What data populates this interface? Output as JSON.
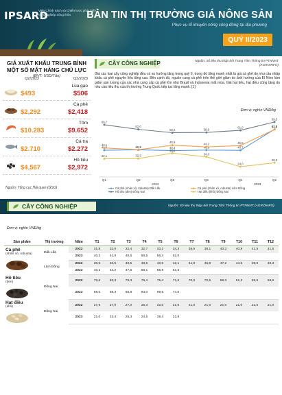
{
  "header": {
    "logo_text": "IPSARD",
    "tagline": "Viện Chính sách và Chiến lược phát triển nông nghiệp nông thôn",
    "title": "BẢN TIN THỊ TRƯỜNG GIÁ NÔNG SẢN",
    "subtitle": "Phục vụ tổ khuyến nông cộng đồng tại địa phương",
    "quarter": "QUÝ II/2023"
  },
  "export_panel": {
    "title": "GIÁ XUẤT KHẨU TRUNG BÌNH MỘT SỐ MẶT HÀNG CHỦ LỰC",
    "unit": "(ĐVT: USD/Tấn)",
    "col1": "Q2/2022",
    "col2": "Q2/2023",
    "items": [
      {
        "name": "Lúa gạo",
        "v1": "$493",
        "v2": "$506",
        "icon": "rice-icon"
      },
      {
        "name": "Cà phê",
        "v1": "$2,292",
        "v2": "$2,418",
        "icon": "coffee-icon"
      },
      {
        "name": "Tôm",
        "v1": "$10.283",
        "v2": "$9.652",
        "icon": "shrimp-icon"
      },
      {
        "name": "Cá tra",
        "v1": "$2.710",
        "v2": "$2.272",
        "icon": "fish-icon"
      },
      {
        "name": "Hồ tiêu",
        "v1": "$4,567",
        "v2": "$2,972",
        "icon": "pepper-icon"
      }
    ],
    "source": "Nguồn: Tổng cục Hải quan (GSO)"
  },
  "section1": {
    "label": "CÂY CÔNG NGHIỆP",
    "source": "Nguồn: Số liệu thu thập bởi Trung Tâm Thông tin PTNNNT (AGROINFO)",
    "paragraph": "Giá các loại cây công nghiệp đều có xu hướng tăng trong quý II, trong đó tăng mạnh nhất là giá cà phê do nhu cầu nhập khẩu cà phê nguyên liệu tăng cao. Bên cạnh đó, nguồn cung cà phê trên thế giới giảm do ảnh hưởng của El Nino làm giảm sản lượng của các nhà cung cấp cà phê lớn như Brazil và Indonesia mất mùa. Giá hạt tiêu, hạt điều cũng tăng do nhu cầu tiêu thụ của thị trường Trung Quốc tiếp tục tăng mạnh. [1]",
    "chart_unit": "Đơn vị: nghìn VNĐ/kg"
  },
  "chart_data": {
    "type": "line",
    "x": [
      "Q1",
      "Q2",
      "Q3",
      "Q4",
      "Q1",
      "Q2"
    ],
    "year_labels": [
      "2022",
      "2023"
    ],
    "ylim": [
      15,
      75
    ],
    "series": [
      {
        "name": "Cà phê (nhân xô, robusta) Đắk Lắk",
        "color": "#5b9bd5",
        "values": [
          40.8,
          41.2,
          40.4,
          40.9,
          40.7,
          62.0
        ]
      },
      {
        "name": "Cà phê (nhân xô, robusta) Lâm Đồng",
        "color": "#f4a24a",
        "values": [
          43.1,
          41.3,
          45.9,
          44.2,
          45.5,
          61.8
        ]
      },
      {
        "name": "Hồ tiêu (đen) Đồng Nai",
        "color": "#6c7a89",
        "values": [
          66.7,
          62.0,
          58.6,
          58.9,
          61.0,
          69.5
        ]
      },
      {
        "name": "Hạt điều (khô) Đồng Nai",
        "color": "#e3c15a",
        "values": [
          32.1,
          32.3,
          37.8,
          34.0,
          24.0,
          28.0
        ]
      }
    ],
    "point_labels": [
      [
        "40,8",
        "41,2",
        "40,4",
        "40,9",
        "40,7",
        "62,0"
      ],
      [
        "43,1",
        "41,3",
        "45,9",
        "44,2",
        "45,5",
        "61,8"
      ],
      [
        "66,7",
        "62,0",
        "58,6",
        "58,9",
        "61,0",
        "69,5"
      ],
      [
        "32,1",
        "32,3",
        "37,8",
        "34,0",
        "24,0",
        "28,0"
      ]
    ]
  },
  "section2": {
    "label": "CÂY CÔNG NGHIỆP",
    "source": "Nguồn: Số liệu thu thập bởi Trung Tâm Thông tin PTNNNT (AGROINFO)",
    "unit": "Đơn vị: nghìn VNĐ/kg"
  },
  "table": {
    "headers": [
      "Sản phẩm",
      "Thị trường",
      "Năm",
      "T1",
      "T2",
      "T3",
      "T4",
      "T5",
      "T6",
      "T7",
      "T8",
      "T9",
      "T10",
      "T11",
      "T12"
    ],
    "groups": [
      {
        "product": "Cà phê",
        "product_sub": "(nhân xô, robusta)",
        "icon": "coffee-beans-icon",
        "markets": [
          {
            "market": "Đắk Lắk",
            "rows": [
              {
                "year": "2022",
                "vals": [
                  "31,8",
                  "32,0",
                  "32,4",
                  "32,7",
                  "33,2",
                  "34,3",
                  "36,6",
                  "38,1",
                  "40,3",
                  "40,8",
                  "41,5",
                  "41,5"
                ]
              },
              {
                "year": "2023",
                "vals": [
                  "40,2",
                  "41,0",
                  "40,6",
                  "50,5",
                  "56,4",
                  "62,0",
                  "",
                  "",
                  "",
                  "",
                  "",
                  ""
                ]
              }
            ]
          },
          {
            "market": "Lâm Đồng",
            "rows": [
              {
                "year": "2022",
                "vals": [
                  "30,5",
                  "40,5",
                  "40,5",
                  "40,5",
                  "40,6",
                  "42,1",
                  "41,9",
                  "46,8",
                  "47,2",
                  "44,5",
                  "39,9",
                  "40,3"
                ]
              },
              {
                "year": "2023",
                "vals": [
                  "40,2",
                  "44,2",
                  "47,6",
                  "50,1",
                  "55,9",
                  "61,6",
                  "",
                  "",
                  "",
                  "",
                  "",
                  ""
                ]
              }
            ]
          }
        ]
      },
      {
        "product": "Hồ tiêu",
        "product_sub": "(đen)",
        "icon": "pepper-seeds-icon",
        "markets": [
          {
            "market": "Đồng Nai",
            "rows": [
              {
                "year": "2022",
                "vals": [
                  "79,6",
                  "83,3",
                  "79,3",
                  "76,4",
                  "75,4",
                  "71,6",
                  "70,0",
                  "70,5",
                  "58,3",
                  "51,3",
                  "59,9",
                  "58,6"
                ]
              },
              {
                "year": "2023",
                "vals": [
                  "58,0",
                  "59,3",
                  "65,8",
                  "64,0",
                  "69,6",
                  "74,0",
                  "",
                  "",
                  "",
                  "",
                  "",
                  ""
                ]
              }
            ]
          }
        ]
      },
      {
        "product": "Hạt điều",
        "product_sub": "(khô)",
        "icon": "cashew-icon",
        "markets": [
          {
            "market": "Đồng Nai",
            "rows": [
              {
                "year": "2022",
                "vals": [
                  "27,5",
                  "27,0",
                  "27,0",
                  "26,3",
                  "22,0",
                  "21,0",
                  "21,0",
                  "21,0",
                  "21,0",
                  "21,0",
                  "21,0",
                  "21,0"
                ]
              },
              {
                "year": "2023",
                "vals": [
                  "21,0",
                  "23,4",
                  "25,3",
                  "24,5",
                  "25,4",
                  "22,8",
                  "",
                  "",
                  "",
                  "",
                  "",
                  ""
                ]
              }
            ]
          }
        ]
      }
    ]
  }
}
